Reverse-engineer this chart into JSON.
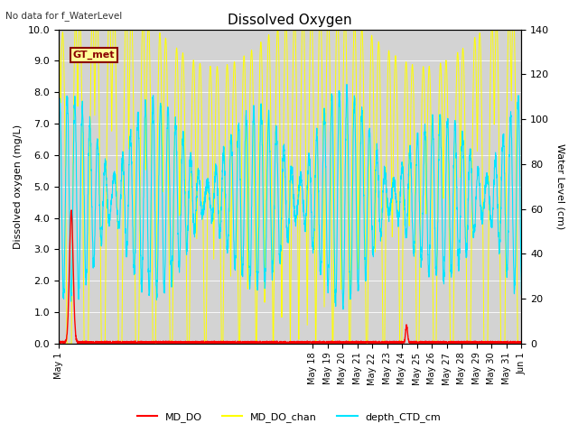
{
  "title": "Dissolved Oxygen",
  "top_left_text": "No data for f_WaterLevel",
  "ylabel_left": "Dissolved oxygen (mg/L)",
  "ylabel_right": "Water Level (cm)",
  "ylim_left": [
    0.0,
    10.0
  ],
  "ylim_right": [
    0,
    140
  ],
  "yticks_left": [
    0.0,
    1.0,
    2.0,
    3.0,
    4.0,
    5.0,
    6.0,
    7.0,
    8.0,
    9.0,
    10.0
  ],
  "yticks_right": [
    0,
    20,
    40,
    60,
    80,
    100,
    120,
    140
  ],
  "background_color": "#d3d3d3",
  "figure_bg": "#ffffff",
  "annotation_text": "GT_met",
  "annotation_color": "#8B0000",
  "annotation_bg": "#ffff99",
  "line_colors": {
    "MD_DO": "#ff0000",
    "MD_DO_chan": "#ffff00",
    "depth_CTD_cm": "#00e5ff"
  },
  "legend_labels": [
    "MD_DO",
    "MD_DO_chan",
    "depth_CTD_cm"
  ],
  "x_ticks_show": [
    0,
    17,
    18,
    19,
    20,
    21,
    22,
    23,
    24,
    25,
    26,
    27,
    28,
    29,
    30,
    31
  ],
  "x_tick_labels": [
    "May 1",
    "May 18",
    "May 19",
    "May 20",
    "May 21",
    "May 22",
    "May 23",
    "May 24",
    "May 25",
    "May 26",
    "May 27",
    "May 28",
    "May 29",
    "May 30",
    "May 31",
    "Jun 1"
  ]
}
